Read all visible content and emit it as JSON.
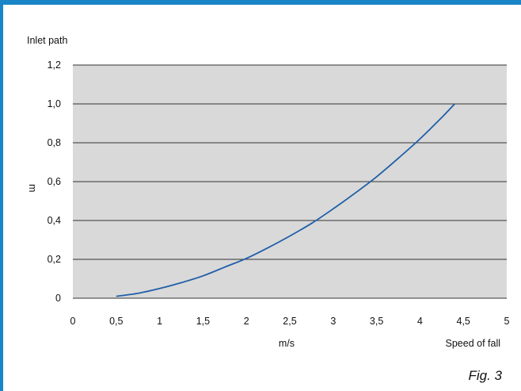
{
  "chart_data": {
    "type": "line",
    "title": "Inlet path",
    "ylabel": "m",
    "xlabel": "m/s",
    "xlabel_secondary": "Speed of fall",
    "figure_label": "Fig. 3",
    "xlim": [
      0,
      5
    ],
    "ylim": [
      0,
      1.2
    ],
    "x_ticks": [
      0,
      0.5,
      1,
      1.5,
      2,
      2.5,
      3,
      3.5,
      4,
      4.5,
      5
    ],
    "x_tick_labels": [
      "0",
      "0,5",
      "1",
      "1,5",
      "2",
      "2,5",
      "3",
      "3,5",
      "4",
      "4,5",
      "5"
    ],
    "y_ticks": [
      0,
      0.2,
      0.4,
      0.6,
      0.8,
      1.0,
      1.2
    ],
    "y_tick_labels": [
      "0",
      "0,2",
      "0,4",
      "0,6",
      "0,8",
      "1,0",
      "1,2"
    ],
    "grid": true,
    "series": [
      {
        "x": [
          0.5,
          0.75,
          1.0,
          1.25,
          1.5,
          1.75,
          2.0,
          2.25,
          2.5,
          2.75,
          3.0,
          3.25,
          3.5,
          3.75,
          4.0,
          4.25,
          4.4
        ],
        "y": [
          0.01,
          0.025,
          0.05,
          0.08,
          0.115,
          0.16,
          0.205,
          0.26,
          0.32,
          0.385,
          0.46,
          0.54,
          0.625,
          0.72,
          0.82,
          0.93,
          1.0
        ]
      }
    ]
  },
  "colors": {
    "plot_background": "#d9d9d9",
    "grid_line": "#333333",
    "series_line": "#1f5fa8",
    "frame_accent": "#1a86c7"
  }
}
